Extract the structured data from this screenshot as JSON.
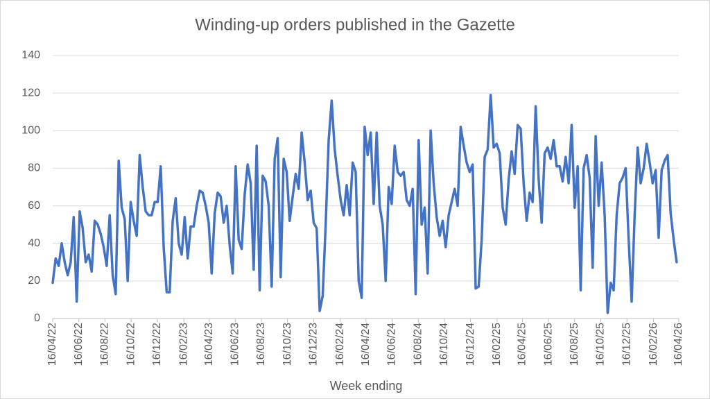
{
  "chart_data": {
    "type": "line",
    "title": "Winding-up orders published in the Gazette",
    "x_label": "Week ending",
    "x": [
      "16/04/22",
      "23/04/22",
      "30/04/22",
      "07/05/22",
      "14/05/22",
      "21/05/22",
      "28/05/22",
      "04/06/22",
      "11/06/22",
      "18/06/22",
      "25/06/22",
      "02/07/22",
      "09/07/22",
      "16/07/22",
      "23/07/22",
      "30/07/22",
      "06/08/22",
      "13/08/22",
      "20/08/22",
      "27/08/22",
      "03/09/22",
      "10/09/22",
      "17/09/22",
      "24/09/22",
      "01/10/22",
      "08/10/22",
      "15/10/22",
      "22/10/22",
      "29/10/22",
      "05/11/22",
      "12/11/22",
      "19/11/22",
      "26/11/22",
      "03/12/22",
      "10/12/22",
      "17/12/22",
      "24/12/22",
      "31/12/22",
      "07/01/23",
      "14/01/23",
      "21/01/23",
      "28/01/23",
      "04/02/23",
      "11/02/23",
      "18/02/23",
      "25/02/23",
      "04/03/23",
      "11/03/23",
      "18/03/23",
      "25/03/23",
      "01/04/23",
      "08/04/23",
      "15/04/23",
      "22/04/23",
      "29/04/23",
      "06/05/23",
      "13/05/23",
      "20/05/23",
      "27/05/23",
      "03/06/23",
      "10/06/23",
      "17/06/23",
      "24/06/23",
      "01/07/23",
      "08/07/23",
      "15/07/23",
      "22/07/23",
      "29/07/23",
      "05/08/23",
      "12/08/23",
      "19/08/23",
      "26/08/23",
      "02/09/23",
      "09/09/23",
      "16/09/23",
      "23/09/23",
      "30/09/23",
      "07/10/23",
      "14/10/23",
      "21/10/23",
      "28/10/23",
      "04/11/23",
      "11/11/23",
      "18/11/23",
      "25/11/23",
      "02/12/23",
      "09/12/23",
      "16/12/23",
      "23/12/23",
      "30/12/23",
      "06/01/24",
      "13/01/24",
      "20/01/24",
      "27/01/24",
      "03/02/24",
      "10/02/24",
      "17/02/24",
      "24/02/24",
      "02/03/24",
      "09/03/24",
      "16/03/24",
      "23/03/24",
      "30/03/24",
      "06/04/24",
      "13/04/24",
      "20/04/24",
      "27/04/24",
      "04/05/24",
      "11/05/24",
      "18/05/24",
      "25/05/24",
      "01/06/24",
      "08/06/24",
      "15/06/24",
      "22/06/24",
      "29/06/24",
      "06/07/24",
      "13/07/24",
      "20/07/24",
      "27/07/24",
      "03/08/24",
      "10/08/24",
      "17/08/24",
      "24/08/24",
      "31/08/24",
      "07/09/24",
      "14/09/24",
      "21/09/24",
      "28/09/24",
      "05/10/24",
      "12/10/24",
      "19/10/24",
      "26/10/24",
      "02/11/24",
      "09/11/24",
      "16/11/24",
      "23/11/24",
      "30/11/24",
      "07/12/24",
      "14/12/24",
      "21/12/24",
      "28/12/24",
      "04/01/25",
      "11/01/25",
      "18/01/25",
      "25/01/25",
      "01/02/25",
      "08/02/25",
      "15/02/25",
      "22/02/25",
      "01/03/25",
      "08/03/25",
      "15/03/25",
      "22/03/25",
      "29/03/25",
      "05/04/25",
      "12/04/25",
      "19/04/25",
      "26/04/25",
      "03/05/25",
      "10/05/25",
      "17/05/25",
      "24/05/25",
      "31/05/25",
      "07/06/25",
      "14/06/25",
      "21/06/25",
      "28/06/25",
      "05/07/25",
      "12/07/25",
      "19/07/25",
      "26/07/25",
      "02/08/25",
      "09/08/25",
      "16/08/25",
      "23/08/25",
      "30/08/25",
      "06/09/25",
      "13/09/25",
      "20/09/25",
      "27/09/25",
      "04/10/25",
      "11/10/25",
      "18/10/25",
      "25/10/25",
      "01/11/25",
      "08/11/25",
      "15/11/25",
      "22/11/25",
      "29/11/25",
      "06/12/25",
      "13/12/25",
      "20/12/25",
      "27/12/25",
      "03/01/26",
      "10/01/26",
      "17/01/26",
      "24/01/26",
      "31/01/26",
      "07/02/26",
      "14/02/26",
      "21/02/26",
      "28/02/26",
      "07/03/26",
      "14/03/26",
      "21/03/26",
      "28/03/26",
      "04/04/26",
      "11/04/26"
    ],
    "series": [
      {
        "color": "#4472c4",
        "values": [
          19,
          32,
          28,
          40,
          30,
          23,
          30,
          54,
          9,
          57,
          48,
          30,
          34,
          25,
          52,
          50,
          45,
          38,
          28,
          55,
          23,
          13,
          84,
          59,
          53,
          20,
          62,
          52,
          44,
          87,
          70,
          57,
          55,
          55,
          62,
          62,
          81,
          38,
          14,
          14,
          52,
          64,
          40,
          34,
          54,
          32,
          49,
          49,
          60,
          68,
          67,
          60,
          51,
          24,
          56,
          67,
          65,
          51,
          60,
          39,
          24,
          81,
          42,
          37,
          66,
          82,
          72,
          26,
          92,
          15,
          76,
          73,
          60,
          17,
          85,
          96,
          22,
          85,
          78,
          52,
          65,
          77,
          69,
          99,
          83,
          63,
          68,
          51,
          48,
          4,
          12,
          50,
          95,
          116,
          90,
          76,
          63,
          55,
          71,
          55,
          83,
          78,
          20,
          11,
          102,
          87,
          99,
          61,
          99,
          60,
          50,
          20,
          70,
          61,
          92,
          78,
          76,
          78,
          63,
          60,
          69,
          13,
          95,
          50,
          59,
          24,
          100,
          72,
          54,
          44,
          52,
          38,
          55,
          62,
          69,
          60,
          102,
          92,
          83,
          78,
          82,
          16,
          17,
          42,
          86,
          90,
          119,
          91,
          93,
          88,
          59,
          50,
          74,
          89,
          77,
          103,
          101,
          72,
          52,
          67,
          62,
          113,
          74,
          51,
          88,
          91,
          85,
          95,
          81,
          81,
          73,
          86,
          72,
          103,
          59,
          81,
          15,
          80,
          87,
          75,
          27,
          97,
          60,
          83,
          55,
          3,
          19,
          15,
          55,
          72,
          75,
          80,
          42,
          9,
          55,
          91,
          72,
          80,
          93,
          83,
          72,
          79,
          43,
          79,
          84,
          87,
          56,
          42,
          30
        ]
      }
    ],
    "xlim": [
      "16/04/22",
      "16/04/26"
    ],
    "xticks": [
      "16/04/22",
      "16/06/22",
      "16/08/22",
      "16/10/22",
      "16/12/22",
      "16/02/23",
      "16/04/23",
      "16/06/23",
      "16/08/23",
      "16/10/23",
      "16/12/23",
      "16/02/24",
      "16/04/24",
      "16/06/24",
      "16/08/24",
      "16/10/24",
      "16/12/24",
      "16/02/25",
      "16/04/25",
      "16/06/25",
      "16/08/25",
      "16/10/25",
      "16/12/25",
      "16/02/26",
      "16/04/26"
    ],
    "ylim": [
      0,
      140
    ],
    "yticks": [
      0,
      20,
      40,
      60,
      80,
      100,
      120,
      140
    ],
    "grid": true
  }
}
